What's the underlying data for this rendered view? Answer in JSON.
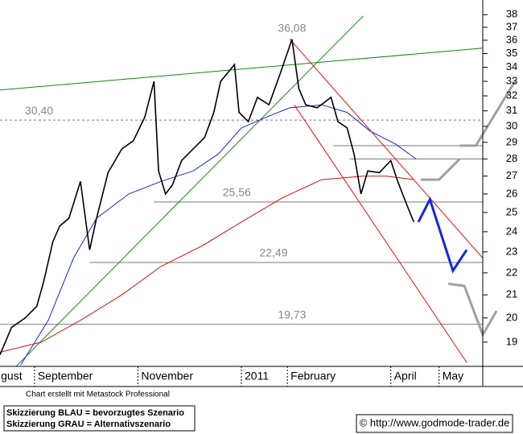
{
  "chart_data": {
    "type": "line",
    "log": true,
    "xlim": [
      0,
      210
    ],
    "ylim": [
      18.05,
      39.2
    ],
    "xticks": [
      {
        "value": -1,
        "label": "gust"
      },
      {
        "value": 15,
        "label": "September"
      },
      {
        "value": 60,
        "label": "November"
      },
      {
        "value": 105,
        "label": "2011"
      },
      {
        "value": 125,
        "label": "February"
      },
      {
        "value": 170,
        "label": "April"
      },
      {
        "value": 191,
        "label": "May"
      }
    ],
    "yticks": [
      19,
      20,
      21,
      22,
      23,
      24,
      25,
      26,
      27,
      28,
      29,
      30,
      31,
      32,
      33,
      34,
      35,
      36,
      37,
      38
    ],
    "series": [
      {
        "color": "#000000",
        "x": [
          0,
          5,
          11,
          16,
          19,
          23,
          26,
          30,
          35,
          39,
          42,
          47,
          53,
          58,
          63,
          67,
          69,
          72,
          75,
          79,
          84,
          89,
          93,
          96,
          102,
          104,
          108,
          112,
          117,
          122,
          127,
          130,
          133,
          138,
          144,
          147,
          151,
          154,
          157,
          160,
          165,
          170,
          173,
          177,
          180
        ],
        "values": [
          18.5,
          19.6,
          20.0,
          20.5,
          21.6,
          23.5,
          24.3,
          24.7,
          26.7,
          23.1,
          24.7,
          27.2,
          28.6,
          29.1,
          30.6,
          33.0,
          27.3,
          26.0,
          26.5,
          27.9,
          28.6,
          29.3,
          30.9,
          33.0,
          34.2,
          30.9,
          30.3,
          31.9,
          31.4,
          33.6,
          36.08,
          32.5,
          31.4,
          31.2,
          31.9,
          30.3,
          29.9,
          28.3,
          26.0,
          27.3,
          27.2,
          27.9,
          26.7,
          25.4,
          24.5
        ]
      },
      {
        "color": "#1a28c8",
        "x": [
          9,
          21,
          32,
          42,
          56,
          70,
          84,
          95,
          105,
          116,
          126,
          140,
          151,
          161,
          172,
          181
        ],
        "values": [
          18.1,
          19.9,
          22.7,
          24.7,
          26.0,
          26.7,
          27.3,
          28.3,
          29.9,
          30.6,
          31.2,
          31.4,
          30.9,
          29.7,
          28.9,
          28.0
        ]
      },
      {
        "color": "#d01010",
        "x": [
          0,
          18,
          35,
          53,
          70,
          88,
          105,
          123,
          140,
          158,
          168,
          180
        ],
        "values": [
          18.6,
          19.0,
          19.9,
          21.0,
          22.3,
          23.3,
          24.5,
          25.8,
          26.8,
          27.0,
          27.0,
          26.8
        ]
      }
    ],
    "trendlines": [
      {
        "color": "#108a10",
        "x": [
          0,
          210
        ],
        "values": [
          32.4,
          35.4
        ]
      },
      {
        "color": "#108a10",
        "x": [
          7,
          158
        ],
        "values": [
          18.05,
          37.9
        ]
      },
      {
        "color": "#e01010",
        "x": [
          126,
          210
        ],
        "values": [
          36.1,
          22.7
        ]
      },
      {
        "color": "#e01010",
        "x": [
          128,
          203
        ],
        "values": [
          31.4,
          18.2
        ]
      }
    ],
    "levels": [
      {
        "value": 30.4,
        "label": "30,40",
        "from": 0,
        "label_x": 17,
        "dashed": true
      },
      {
        "value": 25.56,
        "label": "25,56",
        "from": 67,
        "label_x": 103
      },
      {
        "value": 22.49,
        "label": "22,49",
        "from": 39,
        "label_x": 119
      },
      {
        "value": 19.73,
        "label": "19,73",
        "from": 0,
        "label_x": 127
      },
      {
        "value": 28.8,
        "from": 145
      },
      {
        "value": 28.0,
        "from": 152
      }
    ],
    "peak": {
      "x": 127,
      "value": 36.08,
      "label": "36,08"
    },
    "scenarios": [
      {
        "color": "#1428d8",
        "x": [
          182,
          187,
          197,
          203
        ],
        "values": [
          24.5,
          25.7,
          22.1,
          23.1
        ]
      },
      {
        "color": "#a0a0a0",
        "x": [
          183,
          191,
          200
        ],
        "values": [
          26.8,
          26.8,
          28.0
        ]
      },
      {
        "color": "#a0a0a0",
        "x": [
          200,
          207,
          224
        ],
        "values": [
          28.8,
          28.8,
          33.0
        ]
      },
      {
        "color": "#a0a0a0",
        "x": [
          195,
          202,
          210,
          216
        ],
        "values": [
          21.5,
          21.4,
          19.3,
          20.3
        ]
      }
    ]
  },
  "footer": {
    "credit": "Chart erstellt mit Metastock Professional",
    "legend_lines": [
      "Skizzierung BLAU = bevorzugtes Szenario",
      "Skizzierung GRAU = Alternativszenario"
    ],
    "copyright": "© http://www.godmode-trader.de"
  }
}
